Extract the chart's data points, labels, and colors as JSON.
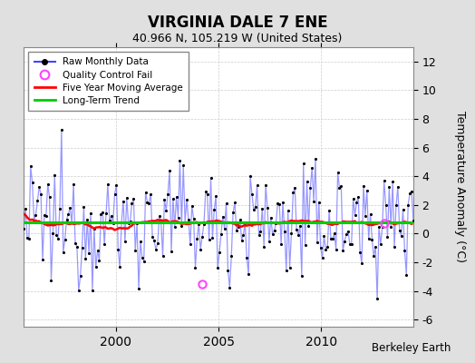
{
  "title": "VIRGINIA DALE 7 ENE",
  "subtitle": "40.966 N, 105.219 W (United States)",
  "ylabel": "Temperature Anomaly (°C)",
  "attribution": "Berkeley Earth",
  "ylim": [
    -6.5,
    13.0
  ],
  "yticks": [
    -6,
    -4,
    -2,
    0,
    2,
    4,
    6,
    8,
    10,
    12
  ],
  "x_start_year": 1995.5,
  "x_end_year": 2014.5,
  "xticks": [
    2000,
    2005,
    2010
  ],
  "background_color": "#e0e0e0",
  "plot_bg_color": "#ffffff",
  "raw_line_color": "#4444ff",
  "raw_line_alpha": 0.55,
  "raw_dot_color": "#000000",
  "moving_avg_color": "#ff0000",
  "trend_color": "#00cc00",
  "qc_fail_color": "#ff44ff",
  "legend_labels": [
    "Raw Monthly Data",
    "Quality Control Fail",
    "Five Year Moving Average",
    "Long-Term Trend"
  ],
  "long_term_trend_value": 0.75,
  "seed": 12345
}
